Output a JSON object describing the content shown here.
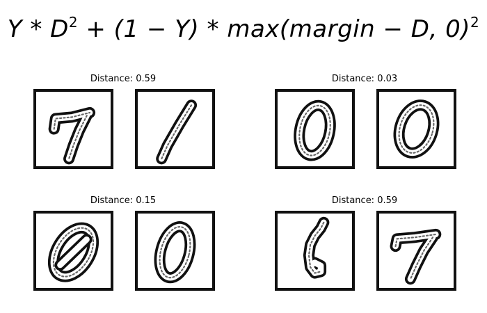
{
  "formula": {
    "y": "Y",
    "op1": " * ",
    "d": "D",
    "exp1": "2",
    "op2": " + (1 − ",
    "y2": "Y",
    "op3": ") * max(margin − D, 0)",
    "exp2": "2"
  },
  "pairs": [
    {
      "label": "Distance: 0.59",
      "left_digit": "7",
      "right_digit": "1"
    },
    {
      "label": "Distance: 0.03",
      "left_digit": "0",
      "right_digit": "0"
    },
    {
      "label": "Distance: 0.15",
      "left_digit": "0",
      "right_digit": "0"
    },
    {
      "label": "Distance: 0.59",
      "left_digit": "6",
      "right_digit": "7"
    }
  ]
}
